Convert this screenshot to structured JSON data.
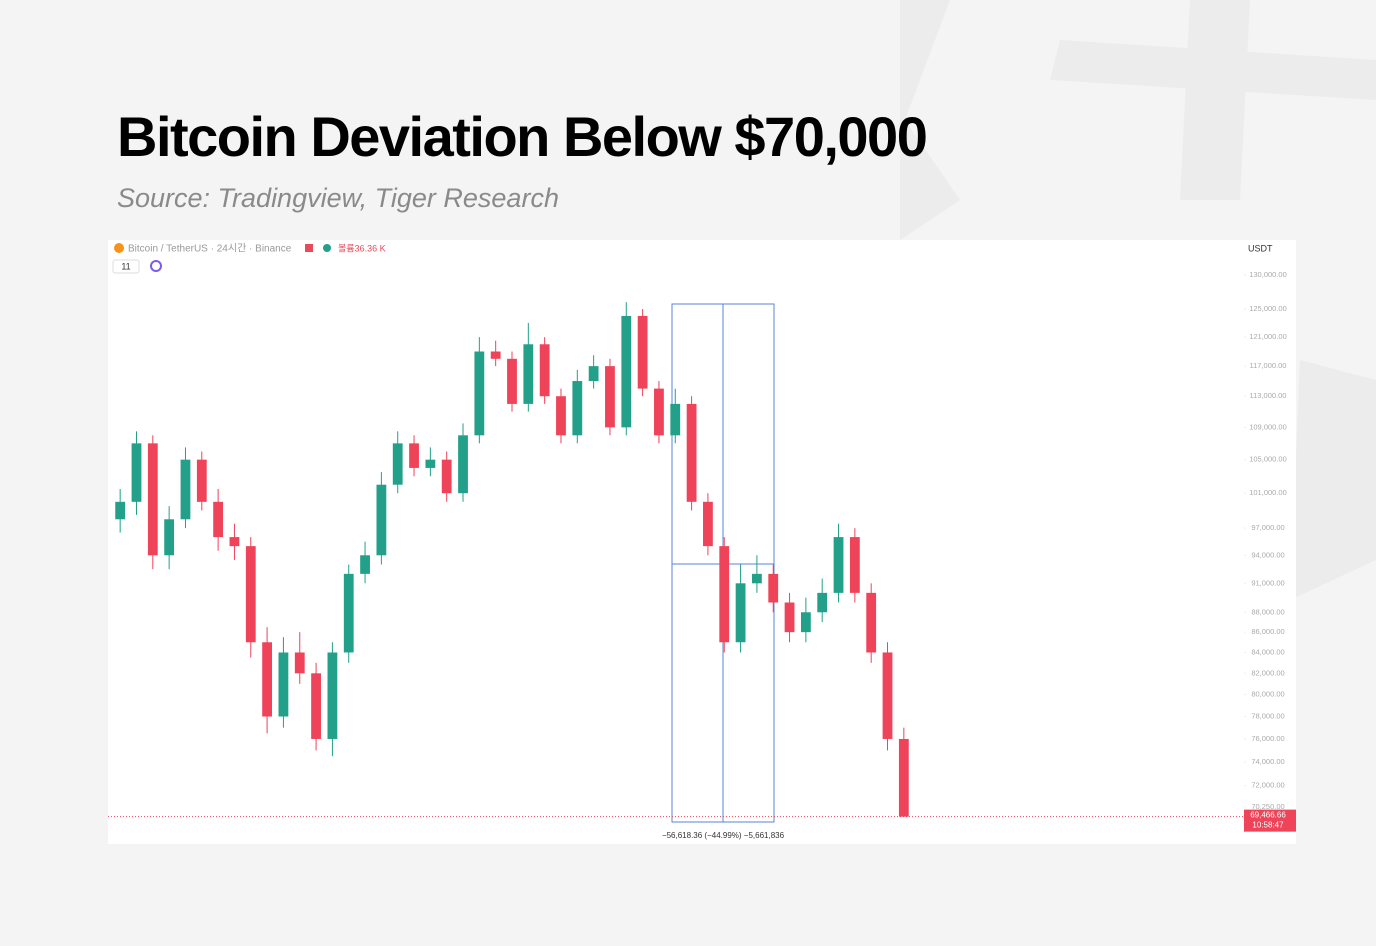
{
  "title": "Bitcoin Deviation Below $70,000",
  "subtitle": "Source: Tradingview, Tiger Research",
  "chart_data": {
    "type": "candlestick",
    "symbol": "Bitcoin / TetherUS · 24시간 · Binance",
    "volume": "볼륨36.36 K",
    "interval_badge": "11",
    "currency": "USDT",
    "log_scale": true,
    "up_color": "#22a08a",
    "down_color": "#ee4358",
    "ylim": [
      68400,
      132600
    ],
    "yticks": [
      {
        "value": 130000,
        "label": "130,000.00"
      },
      {
        "value": 125000,
        "label": "125,000.00"
      },
      {
        "value": 121000,
        "label": "121,000.00"
      },
      {
        "value": 117000,
        "label": "117,000.00"
      },
      {
        "value": 113000,
        "label": "113,000.00"
      },
      {
        "value": 109000,
        "label": "109,000.00"
      },
      {
        "value": 105000,
        "label": "105,000.00"
      },
      {
        "value": 101000,
        "label": "101,000.00"
      },
      {
        "value": 97000,
        "label": "97,000.00"
      },
      {
        "value": 94000,
        "label": "94,000.00"
      },
      {
        "value": 91000,
        "label": "91,000.00"
      },
      {
        "value": 88000,
        "label": "88,000.00"
      },
      {
        "value": 86000,
        "label": "86,000.00"
      },
      {
        "value": 84000,
        "label": "84,000.00"
      },
      {
        "value": 82000,
        "label": "82,000.00"
      },
      {
        "value": 80000,
        "label": "80,000.00"
      },
      {
        "value": 78000,
        "label": "78,000.00"
      },
      {
        "value": 76000,
        "label": "76,000.00"
      },
      {
        "value": 74000,
        "label": "74,000.00"
      },
      {
        "value": 72000,
        "label": "72,000.00"
      },
      {
        "value": 70250,
        "label": "70,250.00"
      }
    ],
    "open": [
      98000,
      100000,
      107000,
      94000,
      98000,
      105000,
      100000,
      96000,
      95000,
      85000,
      78000,
      84000,
      82000,
      76000,
      84000,
      92000,
      94000,
      102000,
      107000,
      104000,
      105000,
      101000,
      108000,
      119000,
      118000,
      112000,
      120000,
      113000,
      108000,
      115000,
      117000,
      109000,
      124000,
      114000,
      108000,
      112000,
      100000,
      95000,
      85000,
      91000,
      92000,
      89000,
      86000,
      88000,
      90000,
      96000,
      90000,
      84000,
      76000
    ],
    "high": [
      101500,
      108500,
      108000,
      99500,
      106500,
      106000,
      101500,
      97500,
      96000,
      86500,
      85500,
      86000,
      83000,
      85000,
      93000,
      95500,
      103500,
      108500,
      108000,
      106500,
      106000,
      109500,
      121000,
      120500,
      119000,
      123000,
      121000,
      114000,
      116500,
      118500,
      118000,
      126000,
      125000,
      115000,
      114000,
      113000,
      101000,
      96000,
      93000,
      94000,
      93000,
      90000,
      89500,
      91500,
      97500,
      97000,
      91000,
      85000,
      77000
    ],
    "low": [
      96500,
      98500,
      92500,
      92500,
      97000,
      99000,
      94500,
      93500,
      83500,
      76500,
      77000,
      81000,
      75000,
      74500,
      83000,
      91000,
      93000,
      101000,
      103000,
      103000,
      100000,
      100000,
      107000,
      117000,
      111000,
      111000,
      112000,
      107000,
      107000,
      114000,
      108000,
      108000,
      113000,
      107000,
      107000,
      99000,
      94000,
      84000,
      84000,
      90000,
      88000,
      85000,
      85000,
      87000,
      89000,
      89000,
      83000,
      75000,
      69466.66
    ],
    "close": [
      100000,
      107000,
      94000,
      98000,
      105000,
      100000,
      96000,
      95000,
      85000,
      78000,
      84000,
      82000,
      76000,
      84000,
      92000,
      94000,
      102000,
      107000,
      104000,
      105000,
      101000,
      108000,
      119000,
      118000,
      112000,
      120000,
      113000,
      108000,
      115000,
      117000,
      109000,
      124000,
      114000,
      108000,
      112000,
      100000,
      95000,
      85000,
      91000,
      92000,
      89000,
      86000,
      88000,
      90000,
      96000,
      90000,
      84000,
      76000,
      69466.66
    ],
    "last_price": {
      "value": 69466.66,
      "label": "69,466.66"
    },
    "countdown": "10:58:47",
    "measure_label": "−56,618.36 (−44.99%) −5,661,836"
  }
}
